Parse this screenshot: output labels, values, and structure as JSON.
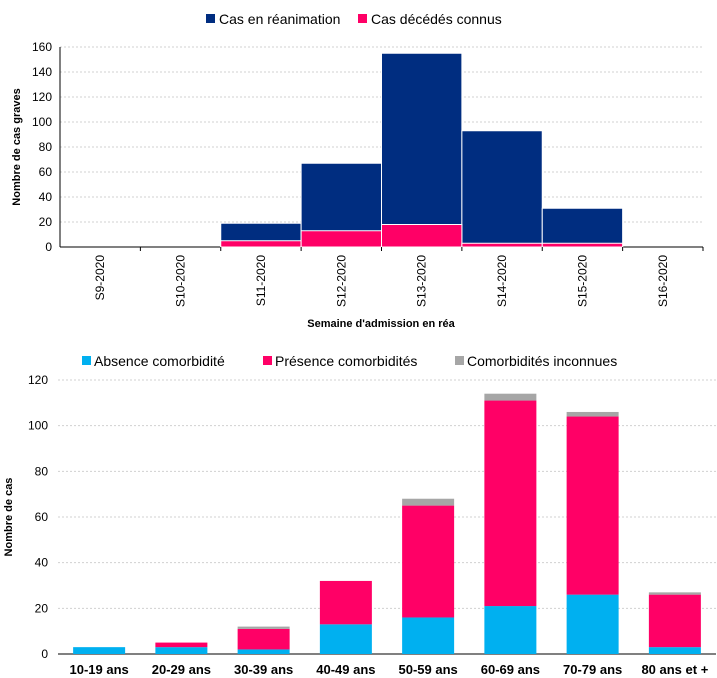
{
  "chart_data": [
    {
      "type": "bar",
      "stacked": "overlay",
      "categories": [
        "S9-2020",
        "S10-2020",
        "S11-2020",
        "S12-2020",
        "S13-2020",
        "S14-2020",
        "S15-2020",
        "S16-2020"
      ],
      "series": [
        {
          "name": "Cas en réanimation",
          "color": "#002d80",
          "values": [
            0,
            0,
            19,
            67,
            155,
            93,
            31,
            0
          ]
        },
        {
          "name": "Cas décédés connus",
          "color": "#ff0066",
          "values": [
            0,
            0,
            5,
            13,
            18,
            3,
            3,
            0
          ]
        }
      ],
      "xlabel": "Semaine d'admission en réa",
      "ylabel": "Nombre de cas graves",
      "ylim": [
        0,
        160
      ],
      "yticks": [
        0,
        20,
        40,
        60,
        80,
        100,
        120,
        140,
        160
      ],
      "legend": "top",
      "grid": true
    },
    {
      "type": "bar",
      "stacked": true,
      "categories": [
        "10-19 ans",
        "20-29 ans",
        "30-39 ans",
        "40-49 ans",
        "50-59 ans",
        "60-69 ans",
        "70-79 ans",
        "80 ans et +"
      ],
      "series": [
        {
          "name": "Absence comorbidité",
          "color": "#00b0f0",
          "values": [
            3,
            3,
            2,
            13,
            16,
            21,
            26,
            3
          ]
        },
        {
          "name": "Présence comorbidités",
          "color": "#ff0066",
          "values": [
            0,
            2,
            9,
            19,
            49,
            90,
            78,
            23
          ]
        },
        {
          "name": "Comorbidités inconnues",
          "color": "#a6a6a6",
          "values": [
            0,
            0,
            1,
            0,
            3,
            3,
            2,
            1
          ]
        }
      ],
      "xlabel": "",
      "ylabel": "Nombre de cas",
      "ylim": [
        0,
        120
      ],
      "yticks": [
        0,
        20,
        40,
        60,
        80,
        100,
        120
      ],
      "legend": "top",
      "grid": true
    }
  ]
}
